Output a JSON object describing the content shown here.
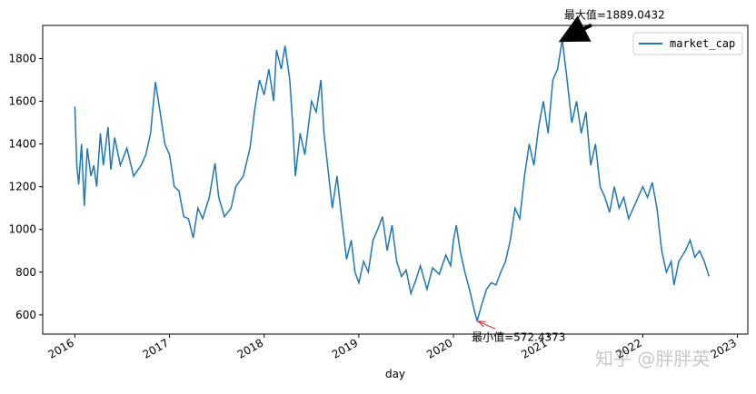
{
  "chart_data": {
    "type": "line",
    "x_label": "day",
    "x": [
      2016.0,
      2016.02,
      2016.04,
      2016.07,
      2016.1,
      2016.13,
      2016.17,
      2016.2,
      2016.23,
      2016.27,
      2016.3,
      2016.35,
      2016.38,
      2016.42,
      2016.48,
      2016.55,
      2016.62,
      2016.7,
      2016.75,
      2016.8,
      2016.85,
      2016.9,
      2016.95,
      2017.0,
      2017.05,
      2017.1,
      2017.15,
      2017.2,
      2017.25,
      2017.3,
      2017.35,
      2017.42,
      2017.48,
      2017.52,
      2017.58,
      2017.65,
      2017.7,
      2017.78,
      2017.85,
      2017.9,
      2017.95,
      2018.0,
      2018.05,
      2018.1,
      2018.13,
      2018.18,
      2018.22,
      2018.27,
      2018.3,
      2018.33,
      2018.38,
      2018.43,
      2018.5,
      2018.55,
      2018.6,
      2018.63,
      2018.67,
      2018.72,
      2018.77,
      2018.82,
      2018.87,
      2018.92,
      2018.96,
      2019.0,
      2019.05,
      2019.1,
      2019.15,
      2019.2,
      2019.25,
      2019.3,
      2019.35,
      2019.4,
      2019.45,
      2019.5,
      2019.55,
      2019.6,
      2019.65,
      2019.72,
      2019.78,
      2019.85,
      2019.92,
      2019.97,
      2020.0,
      2020.03,
      2020.07,
      2020.12,
      2020.18,
      2020.22,
      2020.25,
      2020.3,
      2020.35,
      2020.4,
      2020.45,
      2020.5,
      2020.55,
      2020.6,
      2020.65,
      2020.7,
      2020.75,
      2020.8,
      2020.85,
      2020.9,
      2020.95,
      2021.0,
      2021.05,
      2021.1,
      2021.15,
      2021.2,
      2021.25,
      2021.3,
      2021.35,
      2021.4,
      2021.45,
      2021.5,
      2021.55,
      2021.6,
      2021.65,
      2021.7,
      2021.75,
      2021.8,
      2021.85,
      2021.9,
      2021.95,
      2022.0,
      2022.05,
      2022.1,
      2022.15,
      2022.2,
      2022.25,
      2022.3,
      2022.33,
      2022.38,
      2022.45,
      2022.5,
      2022.55,
      2022.6,
      2022.65,
      2022.7
    ],
    "series": [
      {
        "name": "market_cap",
        "color": "#1f77b4",
        "values": [
          1575,
          1300,
          1210,
          1400,
          1110,
          1380,
          1250,
          1300,
          1200,
          1450,
          1300,
          1480,
          1280,
          1430,
          1300,
          1380,
          1250,
          1300,
          1350,
          1450,
          1690,
          1550,
          1400,
          1350,
          1200,
          1180,
          1060,
          1050,
          960,
          1100,
          1050,
          1150,
          1310,
          1150,
          1060,
          1100,
          1200,
          1250,
          1380,
          1560,
          1700,
          1630,
          1750,
          1600,
          1840,
          1750,
          1860,
          1700,
          1500,
          1250,
          1450,
          1350,
          1600,
          1550,
          1700,
          1460,
          1300,
          1100,
          1250,
          1050,
          860,
          950,
          800,
          750,
          850,
          800,
          950,
          1000,
          1060,
          900,
          1020,
          850,
          780,
          810,
          700,
          760,
          830,
          720,
          820,
          790,
          880,
          830,
          950,
          1020,
          900,
          800,
          700,
          620,
          572.4373,
          650,
          720,
          750,
          740,
          800,
          850,
          950,
          1100,
          1050,
          1250,
          1400,
          1300,
          1480,
          1600,
          1450,
          1700,
          1750,
          1889.0432,
          1700,
          1500,
          1600,
          1450,
          1550,
          1300,
          1400,
          1200,
          1150,
          1080,
          1200,
          1100,
          1150,
          1050,
          1100,
          1150,
          1200,
          1150,
          1220,
          1100,
          900,
          800,
          850,
          740,
          850,
          900,
          950,
          870,
          900,
          850,
          780
        ]
      }
    ],
    "xlim": [
      2015.66,
      2023.11
    ],
    "xticks": [
      2016,
      2017,
      2018,
      2019,
      2020,
      2021,
      2022,
      2023
    ],
    "ylim": [
      510,
      1955
    ],
    "yticks": [
      600,
      800,
      1000,
      1200,
      1400,
      1600,
      1800
    ],
    "legend": "upper right",
    "annotations": [
      {
        "text": "最大值=1889.0432",
        "x": 2021.15,
        "y": 1889.0432,
        "color": "#000000"
      },
      {
        "text": "最小值=572.4373",
        "x": 2020.25,
        "y": 572.4373,
        "color": "#d62728"
      }
    ],
    "watermark": "知乎 @胖胖英"
  }
}
